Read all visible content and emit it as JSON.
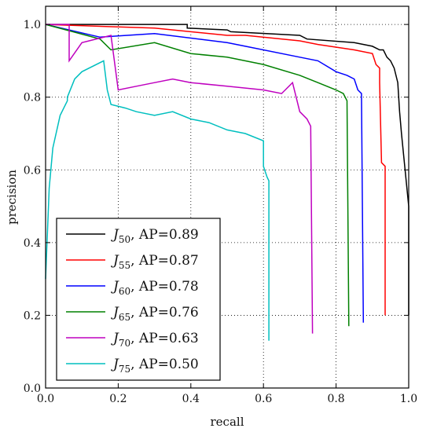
{
  "chart_data": {
    "type": "line",
    "xlabel": "recall",
    "ylabel": "precision",
    "xlim": [
      0.0,
      1.0
    ],
    "ylim": [
      0.0,
      1.05
    ],
    "x_ticks": [
      "0.0",
      "0.2",
      "0.4",
      "0.6",
      "0.8",
      "1.0"
    ],
    "y_ticks": [
      "0.0",
      "0.2",
      "0.4",
      "0.6",
      "0.8",
      "1.0"
    ],
    "grid": "dotted",
    "legend_position": "bottom-left",
    "series": [
      {
        "name": "J50, AP=0.89",
        "label_letter": "J",
        "label_sub": "50",
        "label_rest": ", AP=0.89",
        "color": "#000000",
        "points": [
          [
            0.0,
            1.0
          ],
          [
            0.39,
            1.0
          ],
          [
            0.39,
            0.99
          ],
          [
            0.5,
            0.985
          ],
          [
            0.51,
            0.98
          ],
          [
            0.7,
            0.97
          ],
          [
            0.72,
            0.96
          ],
          [
            0.85,
            0.95
          ],
          [
            0.9,
            0.94
          ],
          [
            0.92,
            0.93
          ],
          [
            0.93,
            0.93
          ],
          [
            0.94,
            0.91
          ],
          [
            0.95,
            0.9
          ],
          [
            0.96,
            0.88
          ],
          [
            0.97,
            0.84
          ],
          [
            0.975,
            0.76
          ],
          [
            0.98,
            0.7
          ],
          [
            0.99,
            0.6
          ],
          [
            1.0,
            0.5
          ],
          [
            1.0,
            0.2
          ]
        ]
      },
      {
        "name": "J55, AP=0.87",
        "label_letter": "J",
        "label_sub": "55",
        "label_rest": ", AP=0.87",
        "color": "#ff0000",
        "points": [
          [
            0.0,
            1.0
          ],
          [
            0.3,
            0.99
          ],
          [
            0.5,
            0.97
          ],
          [
            0.55,
            0.97
          ],
          [
            0.7,
            0.955
          ],
          [
            0.75,
            0.945
          ],
          [
            0.85,
            0.93
          ],
          [
            0.9,
            0.92
          ],
          [
            0.91,
            0.89
          ],
          [
            0.92,
            0.88
          ],
          [
            0.92,
            0.84
          ],
          [
            0.925,
            0.62
          ],
          [
            0.935,
            0.61
          ],
          [
            0.935,
            0.2
          ]
        ]
      },
      {
        "name": "J60, AP=0.78",
        "label_letter": "J",
        "label_sub": "60",
        "label_rest": ", AP=0.78",
        "color": "#0000ff",
        "points": [
          [
            0.0,
            1.0
          ],
          [
            0.15,
            0.965
          ],
          [
            0.3,
            0.975
          ],
          [
            0.5,
            0.95
          ],
          [
            0.55,
            0.94
          ],
          [
            0.7,
            0.91
          ],
          [
            0.75,
            0.9
          ],
          [
            0.8,
            0.87
          ],
          [
            0.83,
            0.86
          ],
          [
            0.85,
            0.85
          ],
          [
            0.86,
            0.82
          ],
          [
            0.87,
            0.81
          ],
          [
            0.875,
            0.18
          ]
        ]
      },
      {
        "name": "J65, AP=0.76",
        "label_letter": "J",
        "label_sub": "65",
        "label_rest": ", AP=0.76",
        "color": "#008000",
        "points": [
          [
            0.0,
            1.0
          ],
          [
            0.15,
            0.96
          ],
          [
            0.18,
            0.93
          ],
          [
            0.3,
            0.95
          ],
          [
            0.4,
            0.92
          ],
          [
            0.5,
            0.91
          ],
          [
            0.6,
            0.89
          ],
          [
            0.7,
            0.86
          ],
          [
            0.75,
            0.84
          ],
          [
            0.8,
            0.82
          ],
          [
            0.82,
            0.81
          ],
          [
            0.83,
            0.79
          ],
          [
            0.835,
            0.17
          ]
        ]
      },
      {
        "name": "J70, AP=0.63",
        "label_letter": "J",
        "label_sub": "70",
        "label_rest": ", AP=0.63",
        "color": "#bf00bf",
        "points": [
          [
            0.0,
            1.0
          ],
          [
            0.065,
            1.0
          ],
          [
            0.065,
            0.9
          ],
          [
            0.1,
            0.95
          ],
          [
            0.18,
            0.97
          ],
          [
            0.2,
            0.82
          ],
          [
            0.25,
            0.83
          ],
          [
            0.3,
            0.84
          ],
          [
            0.35,
            0.85
          ],
          [
            0.4,
            0.84
          ],
          [
            0.5,
            0.83
          ],
          [
            0.6,
            0.82
          ],
          [
            0.65,
            0.81
          ],
          [
            0.68,
            0.84
          ],
          [
            0.7,
            0.76
          ],
          [
            0.72,
            0.74
          ],
          [
            0.73,
            0.72
          ],
          [
            0.735,
            0.15
          ]
        ]
      },
      {
        "name": "J75, AP=0.50",
        "label_letter": "J",
        "label_sub": "75",
        "label_rest": ", AP=0.50",
        "color": "#00bfbf",
        "points": [
          [
            0.0,
            0.3
          ],
          [
            0.01,
            0.55
          ],
          [
            0.02,
            0.66
          ],
          [
            0.04,
            0.75
          ],
          [
            0.06,
            0.79
          ],
          [
            0.06,
            0.8
          ],
          [
            0.08,
            0.85
          ],
          [
            0.1,
            0.87
          ],
          [
            0.16,
            0.9
          ],
          [
            0.17,
            0.82
          ],
          [
            0.18,
            0.78
          ],
          [
            0.22,
            0.77
          ],
          [
            0.25,
            0.76
          ],
          [
            0.3,
            0.75
          ],
          [
            0.35,
            0.76
          ],
          [
            0.4,
            0.74
          ],
          [
            0.45,
            0.73
          ],
          [
            0.5,
            0.71
          ],
          [
            0.55,
            0.7
          ],
          [
            0.6,
            0.68
          ],
          [
            0.6,
            0.61
          ],
          [
            0.61,
            0.58
          ],
          [
            0.615,
            0.57
          ],
          [
            0.615,
            0.13
          ]
        ]
      }
    ]
  }
}
